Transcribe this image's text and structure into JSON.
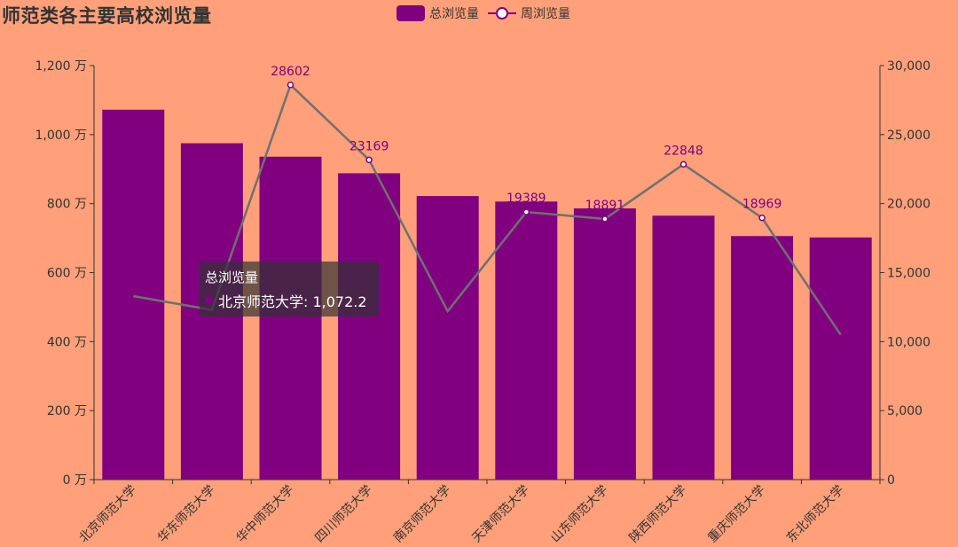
{
  "chart_data": {
    "type": "bar",
    "title": "师范类各主要高校浏览量",
    "categories": [
      "北京师范大学",
      "华东师范大学",
      "华中师范大学",
      "四川师范大学",
      "南京师范大学",
      "天津师范大学",
      "山东师范大学",
      "陕西师范大学",
      "重庆师范大学",
      "东北师范大学"
    ],
    "series": [
      {
        "name": "总浏览量",
        "type": "bar",
        "color": "#800080",
        "values": [
          1072.2,
          975,
          936,
          888,
          822,
          806,
          786,
          765,
          706,
          702
        ]
      },
      {
        "name": "周浏览量",
        "type": "line",
        "color": "#800080",
        "line_color": "#707070",
        "values": [
          13300,
          12300,
          28602,
          23169,
          12200,
          19389,
          18891,
          22848,
          18969,
          10500
        ],
        "labeled": [
          false,
          false,
          true,
          true,
          false,
          true,
          true,
          true,
          true,
          false
        ]
      }
    ],
    "y_left": {
      "min": 0,
      "max": 1200,
      "ticks": [
        0,
        200,
        400,
        600,
        800,
        1000,
        1200
      ],
      "tick_labels": [
        "0 万",
        "200 万",
        "400 万",
        "600 万",
        "800 万",
        "1,000 万",
        "1,200 万"
      ]
    },
    "y_right": {
      "min": 0,
      "max": 30000,
      "ticks": [
        0,
        5000,
        10000,
        15000,
        20000,
        25000,
        30000
      ],
      "tick_labels": [
        "0",
        "5,000",
        "10,000",
        "15,000",
        "20,000",
        "25,000",
        "30,000"
      ]
    },
    "legend": [
      "总浏览量",
      "周浏览量"
    ],
    "legend_position": "top-center"
  },
  "tooltip": {
    "title": "总浏览量",
    "label": "北京师范大学: 1,072.2"
  }
}
